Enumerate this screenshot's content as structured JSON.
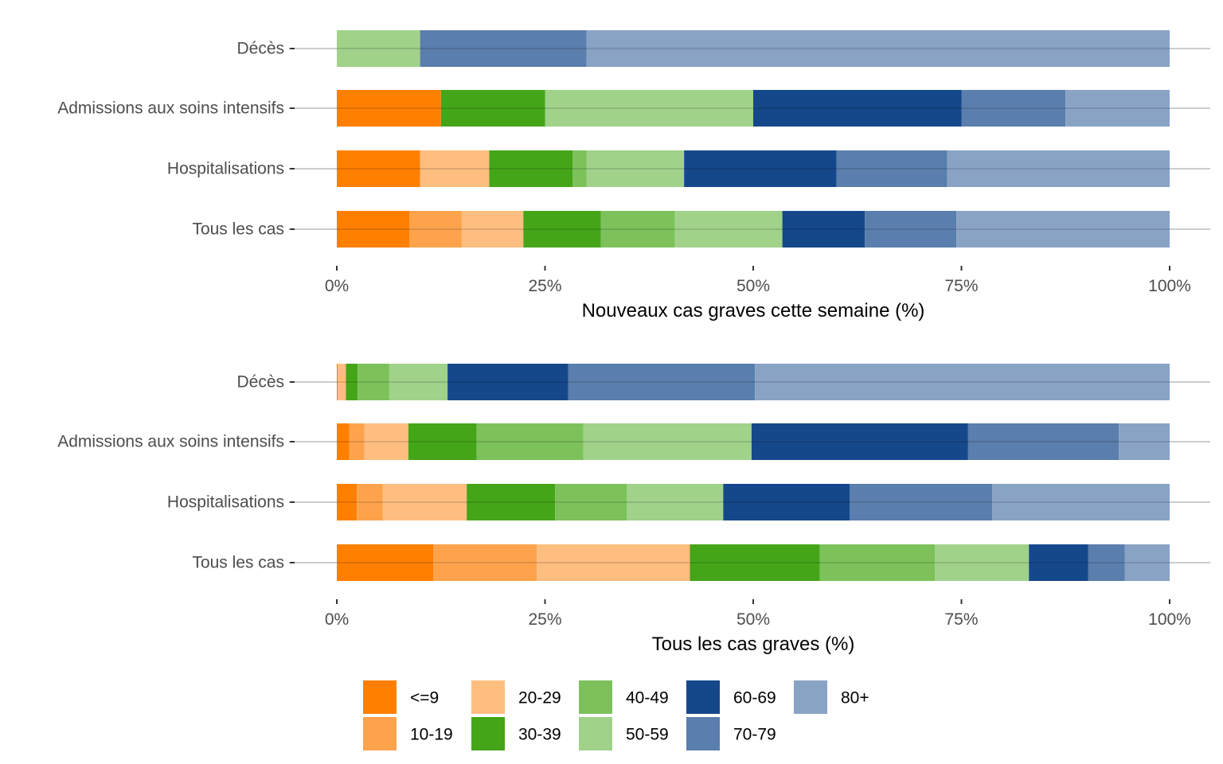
{
  "chart_data": [
    {
      "type": "bar",
      "orientation": "horizontal",
      "stacked": true,
      "title": "",
      "xlabel": "Nouveaux cas graves cette semaine (%)",
      "ylabel": "",
      "xlim": [
        0,
        100
      ],
      "xticks": [
        "0%",
        "25%",
        "50%",
        "75%",
        "100%"
      ],
      "xtick_values": [
        0,
        25,
        50,
        75,
        100
      ],
      "grid": true,
      "categories": [
        "Décès",
        "Admissions aux soins intensifs",
        "Hospitalisations",
        "Tous les cas"
      ],
      "series": [
        {
          "name": "<=9",
          "values": [
            0,
            12.5,
            10.0,
            8.7
          ]
        },
        {
          "name": "10-19",
          "values": [
            0,
            0,
            0,
            6.3
          ]
        },
        {
          "name": "20-29",
          "values": [
            0,
            0,
            8.3,
            7.4
          ]
        },
        {
          "name": "30-39",
          "values": [
            0,
            12.5,
            10.0,
            9.3
          ]
        },
        {
          "name": "40-49",
          "values": [
            0,
            0,
            1.7,
            8.9
          ]
        },
        {
          "name": "50-59",
          "values": [
            10.0,
            25.0,
            11.7,
            12.9
          ]
        },
        {
          "name": "60-69",
          "values": [
            0,
            25.0,
            18.3,
            9.9
          ]
        },
        {
          "name": "70-79",
          "values": [
            20.0,
            12.5,
            13.3,
            11.0
          ]
        },
        {
          "name": "80+",
          "values": [
            70.0,
            12.5,
            26.7,
            25.6
          ]
        }
      ]
    },
    {
      "type": "bar",
      "orientation": "horizontal",
      "stacked": true,
      "title": "",
      "xlabel": "Tous les cas graves (%)",
      "ylabel": "",
      "xlim": [
        0,
        100
      ],
      "xticks": [
        "0%",
        "25%",
        "50%",
        "75%",
        "100%"
      ],
      "xtick_values": [
        0,
        25,
        50,
        75,
        100
      ],
      "grid": true,
      "categories": [
        "Décès",
        "Admissions aux soins intensifs",
        "Hospitalisations",
        "Tous les cas"
      ],
      "series": [
        {
          "name": "<=9",
          "values": [
            0.1,
            1.5,
            2.4,
            11.6
          ]
        },
        {
          "name": "10-19",
          "values": [
            0,
            1.8,
            3.1,
            12.4
          ]
        },
        {
          "name": "20-29",
          "values": [
            1.0,
            5.3,
            10.1,
            18.4
          ]
        },
        {
          "name": "30-39",
          "values": [
            1.4,
            8.2,
            10.6,
            15.6
          ]
        },
        {
          "name": "40-49",
          "values": [
            3.8,
            12.8,
            8.6,
            13.8
          ]
        },
        {
          "name": "50-59",
          "values": [
            7.0,
            20.2,
            11.6,
            11.3
          ]
        },
        {
          "name": "60-69",
          "values": [
            14.5,
            26.0,
            15.2,
            7.1
          ]
        },
        {
          "name": "70-79",
          "values": [
            22.4,
            18.1,
            17.1,
            4.4
          ]
        },
        {
          "name": "80+",
          "values": [
            49.8,
            6.1,
            21.3,
            5.4
          ]
        }
      ]
    }
  ],
  "legend": {
    "position": "bottom",
    "items": [
      {
        "label": "<=9",
        "color": "#ff7f00"
      },
      {
        "label": "10-19",
        "color": "#fea34b"
      },
      {
        "label": "20-29",
        "color": "#febe80"
      },
      {
        "label": "30-39",
        "color": "#45a519"
      },
      {
        "label": "40-49",
        "color": "#7dc15b"
      },
      {
        "label": "50-59",
        "color": "#a0d28a"
      },
      {
        "label": "60-69",
        "color": "#15488b"
      },
      {
        "label": "70-79",
        "color": "#5a7ead"
      },
      {
        "label": "80+",
        "color": "#89a3c5"
      }
    ]
  }
}
